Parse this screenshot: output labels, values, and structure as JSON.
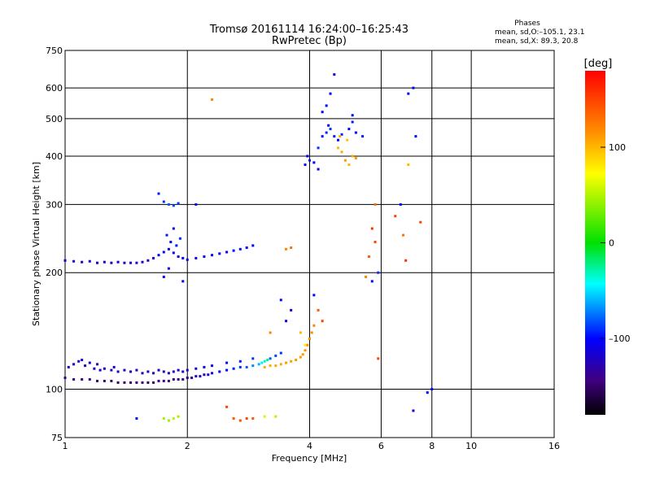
{
  "chart_data": {
    "type": "scatter",
    "title": "Tromsø 20161114 16:24:00–16:25:43",
    "subtitle": "RwPretec (Bp)",
    "xlabel": "Frequency [MHz]",
    "ylabel": "Stationary phase Virtual Height [km]",
    "x_scale": "log",
    "y_scale": "log",
    "xlim": [
      1,
      16
    ],
    "ylim": [
      75,
      750
    ],
    "grid": true,
    "x_ticks": [
      1,
      2,
      4,
      6,
      8,
      10,
      16
    ],
    "x_tick_labels": [
      "1",
      "2",
      "4",
      "6",
      "8",
      "10",
      "16"
    ],
    "y_ticks": [
      75,
      100,
      200,
      300,
      400,
      500,
      600,
      750
    ],
    "y_tick_labels": [
      "75",
      "100",
      "200",
      "300",
      "400",
      "500",
      "600",
      "750"
    ],
    "stats": {
      "heading": "Phases",
      "line1": "mean, sd,O:–105.1, 23.1",
      "line2": "mean, sd,X:  89.3, 20.8"
    },
    "colorbar": {
      "label": "[deg]",
      "min": -180,
      "max": 180,
      "ticks": [
        100,
        0,
        -100
      ],
      "tick_labels": [
        "100",
        "0",
        "–100"
      ]
    },
    "series": [
      {
        "points": [
          [
            1.0,
            107,
            -135
          ],
          [
            1.05,
            106,
            -140
          ],
          [
            1.1,
            106,
            -140
          ],
          [
            1.15,
            106,
            -140
          ],
          [
            1.2,
            105,
            -145
          ],
          [
            1.25,
            105,
            -145
          ],
          [
            1.3,
            105,
            -148
          ],
          [
            1.35,
            104,
            -148
          ],
          [
            1.4,
            104,
            -150
          ],
          [
            1.45,
            104,
            -150
          ],
          [
            1.5,
            104,
            -150
          ],
          [
            1.55,
            104,
            -150
          ],
          [
            1.6,
            104,
            -150
          ],
          [
            1.65,
            104,
            -148
          ],
          [
            1.7,
            105,
            -148
          ],
          [
            1.75,
            105,
            -145
          ],
          [
            1.8,
            105,
            -145
          ],
          [
            1.85,
            106,
            -140
          ],
          [
            1.9,
            106,
            -140
          ],
          [
            1.95,
            106,
            -135
          ],
          [
            2.0,
            107,
            -135
          ],
          [
            2.05,
            107,
            -130
          ],
          [
            2.1,
            108,
            -125
          ],
          [
            2.15,
            108,
            -125
          ],
          [
            2.2,
            109,
            -120
          ],
          [
            2.25,
            109,
            -115
          ],
          [
            2.3,
            110,
            -110
          ],
          [
            2.4,
            111,
            -105
          ],
          [
            2.5,
            112,
            -100
          ],
          [
            2.6,
            113,
            -95
          ],
          [
            2.7,
            114,
            -90
          ],
          [
            2.8,
            114,
            -80
          ],
          [
            2.9,
            115,
            -70
          ],
          [
            3.0,
            116,
            -60
          ],
          [
            3.05,
            117,
            -45
          ],
          [
            3.1,
            118,
            -35
          ],
          [
            3.15,
            119,
            -25
          ],
          [
            3.2,
            120,
            -80
          ],
          [
            3.3,
            122,
            -85
          ],
          [
            3.4,
            124,
            -90
          ]
        ]
      },
      {
        "points": [
          [
            1.02,
            114,
            -120
          ],
          [
            1.05,
            116,
            -115
          ],
          [
            1.08,
            118,
            -120
          ],
          [
            1.1,
            119,
            -110
          ],
          [
            1.12,
            115,
            -125
          ],
          [
            1.15,
            117,
            -118
          ],
          [
            1.18,
            113,
            -120
          ],
          [
            1.2,
            116,
            -125
          ],
          [
            1.22,
            112,
            -115
          ],
          [
            1.25,
            113,
            -120
          ],
          [
            1.3,
            112,
            -125
          ],
          [
            1.32,
            114,
            -118
          ],
          [
            1.35,
            111,
            -120
          ],
          [
            1.4,
            112,
            -128
          ],
          [
            1.45,
            111,
            -122
          ],
          [
            1.5,
            112,
            -120
          ],
          [
            1.55,
            110,
            -125
          ],
          [
            1.6,
            111,
            -118
          ],
          [
            1.65,
            110,
            -122
          ],
          [
            1.7,
            112,
            -120
          ],
          [
            1.75,
            111,
            -125
          ],
          [
            1.8,
            110,
            -118
          ],
          [
            1.85,
            111,
            -120
          ],
          [
            1.9,
            112,
            -115
          ],
          [
            1.95,
            111,
            -120
          ],
          [
            2.0,
            112,
            -118
          ],
          [
            2.1,
            113,
            -115
          ],
          [
            2.2,
            114,
            -110
          ],
          [
            2.3,
            115,
            -105
          ],
          [
            2.5,
            117,
            -100
          ],
          [
            2.7,
            118,
            -95
          ],
          [
            2.9,
            120,
            -90
          ]
        ]
      },
      {
        "points": [
          [
            3.1,
            114,
            105
          ],
          [
            3.2,
            115,
            105
          ],
          [
            3.3,
            115,
            108
          ],
          [
            3.4,
            116,
            108
          ],
          [
            3.5,
            117,
            110
          ],
          [
            3.6,
            118,
            110
          ],
          [
            3.7,
            119,
            112
          ],
          [
            3.8,
            121,
            112
          ],
          [
            3.85,
            123,
            112
          ],
          [
            3.9,
            126,
            115
          ],
          [
            3.95,
            130,
            115
          ],
          [
            4.0,
            135,
            118
          ],
          [
            4.05,
            140,
            120
          ],
          [
            4.1,
            146,
            120
          ]
        ]
      },
      {
        "points": [
          [
            1.0,
            215,
            -110
          ],
          [
            1.05,
            214,
            -115
          ],
          [
            1.1,
            213,
            -120
          ],
          [
            1.15,
            214,
            -115
          ],
          [
            1.2,
            212,
            -118
          ],
          [
            1.25,
            213,
            -115
          ],
          [
            1.3,
            212,
            -120
          ],
          [
            1.35,
            213,
            -118
          ],
          [
            1.4,
            212,
            -120
          ],
          [
            1.45,
            212,
            -118
          ],
          [
            1.5,
            212,
            -115
          ],
          [
            1.55,
            213,
            -120
          ],
          [
            1.6,
            215,
            -110
          ],
          [
            1.65,
            218,
            -115
          ],
          [
            1.7,
            222,
            -100
          ],
          [
            1.75,
            226,
            -105
          ],
          [
            1.8,
            230,
            -110
          ],
          [
            1.85,
            225,
            -100
          ],
          [
            1.9,
            220,
            -110
          ],
          [
            1.95,
            218,
            -105
          ],
          [
            2.0,
            216,
            -108
          ],
          [
            2.1,
            218,
            -105
          ],
          [
            2.2,
            220,
            -105
          ],
          [
            2.3,
            222,
            -100
          ],
          [
            2.4,
            224,
            -100
          ],
          [
            2.5,
            226,
            -102
          ],
          [
            2.6,
            228,
            -100
          ],
          [
            2.7,
            230,
            -98
          ],
          [
            2.8,
            232,
            -100
          ],
          [
            2.9,
            235,
            -100
          ]
        ]
      },
      {
        "points": [
          [
            1.7,
            320,
            -95
          ],
          [
            1.75,
            305,
            -90
          ],
          [
            1.8,
            300,
            -80
          ],
          [
            1.85,
            298,
            -85
          ],
          [
            1.9,
            302,
            -90
          ],
          [
            1.78,
            250,
            -95
          ],
          [
            1.82,
            240,
            -100
          ],
          [
            1.88,
            235,
            -95
          ],
          [
            1.92,
            245,
            -90
          ],
          [
            1.85,
            260,
            -100
          ],
          [
            1.75,
            195,
            -105
          ],
          [
            1.8,
            205,
            -100
          ],
          [
            1.95,
            190,
            -100
          ],
          [
            2.1,
            300,
            -100
          ]
        ]
      },
      {
        "points": [
          [
            3.9,
            380,
            -100
          ],
          [
            3.95,
            400,
            -100
          ],
          [
            4.0,
            390,
            -95
          ],
          [
            4.1,
            385,
            -100
          ],
          [
            4.2,
            420,
            -90
          ],
          [
            4.3,
            450,
            -100
          ],
          [
            4.4,
            460,
            -95
          ],
          [
            4.45,
            480,
            -100
          ],
          [
            4.5,
            470,
            -90
          ],
          [
            4.6,
            450,
            -95
          ],
          [
            4.7,
            440,
            -100
          ],
          [
            4.8,
            455,
            -95
          ],
          [
            5.0,
            470,
            -100
          ],
          [
            5.1,
            490,
            -95
          ],
          [
            5.2,
            460,
            -100
          ],
          [
            5.4,
            450,
            -95
          ],
          [
            4.3,
            520,
            -105
          ],
          [
            4.4,
            540,
            -100
          ],
          [
            5.1,
            510,
            -100
          ],
          [
            4.2,
            370,
            -100
          ],
          [
            4.5,
            580,
            -100
          ],
          [
            4.6,
            650,
            -105
          ]
        ]
      },
      {
        "points": [
          [
            4.7,
            420,
            100
          ],
          [
            4.8,
            410,
            105
          ],
          [
            4.9,
            390,
            110
          ],
          [
            5.0,
            380,
            100
          ],
          [
            5.1,
            400,
            105
          ],
          [
            5.2,
            395,
            110
          ],
          [
            4.95,
            440,
            95
          ],
          [
            4.75,
            450,
            105
          ]
        ]
      },
      {
        "points": [
          [
            5.7,
            260,
            160
          ],
          [
            5.8,
            240,
            150
          ],
          [
            5.6,
            220,
            140
          ],
          [
            5.9,
            200,
            -90
          ],
          [
            5.7,
            190,
            -100
          ],
          [
            5.5,
            195,
            120
          ],
          [
            5.8,
            300,
            130
          ],
          [
            6.5,
            280,
            150
          ],
          [
            6.7,
            300,
            -100
          ],
          [
            6.8,
            250,
            130
          ],
          [
            7.0,
            380,
            100
          ],
          [
            7.2,
            600,
            -100
          ],
          [
            7.0,
            580,
            -100
          ],
          [
            7.3,
            450,
            -100
          ],
          [
            7.5,
            270,
            150
          ],
          [
            7.8,
            98,
            -100
          ],
          [
            7.2,
            88,
            -120
          ],
          [
            8.0,
            100,
            -100
          ],
          [
            5.9,
            120,
            150
          ],
          [
            6.9,
            215,
            160
          ]
        ]
      },
      {
        "points": [
          [
            1.75,
            84,
            45
          ],
          [
            1.8,
            83,
            40
          ],
          [
            1.85,
            84,
            50
          ],
          [
            1.9,
            85,
            45
          ],
          [
            2.6,
            84,
            140
          ],
          [
            2.7,
            83,
            145
          ],
          [
            2.8,
            84,
            150
          ],
          [
            2.9,
            84,
            140
          ],
          [
            3.1,
            85,
            60
          ],
          [
            3.3,
            85,
            50
          ],
          [
            1.5,
            84,
            -100
          ],
          [
            2.5,
            90,
            150
          ],
          [
            2.3,
            560,
            120
          ],
          [
            3.5,
            230,
            120
          ],
          [
            3.6,
            232,
            130
          ],
          [
            3.4,
            170,
            -100
          ],
          [
            3.6,
            160,
            -110
          ],
          [
            3.5,
            150,
            -100
          ],
          [
            3.2,
            140,
            120
          ],
          [
            3.8,
            140,
            100
          ],
          [
            3.9,
            130,
            80
          ],
          [
            4.2,
            160,
            140
          ],
          [
            4.3,
            150,
            150
          ],
          [
            4.1,
            175,
            -100
          ]
        ]
      }
    ]
  }
}
